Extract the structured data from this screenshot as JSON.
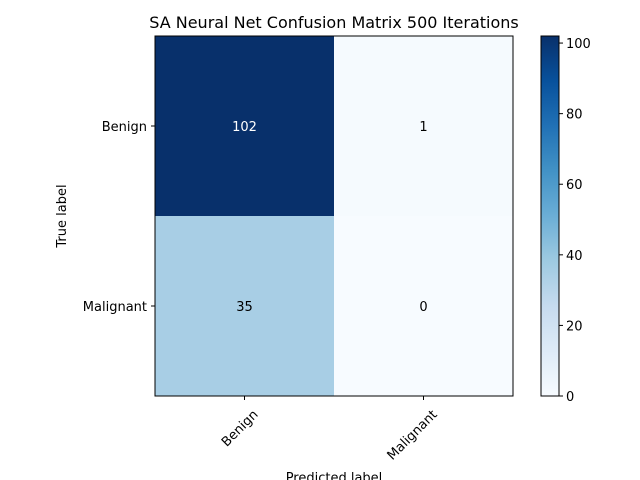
{
  "chart_data": {
    "type": "heatmap",
    "title": "SA Neural Net Confusion Matrix 500 Iterations",
    "xlabel": "Predicted label",
    "ylabel": "True label",
    "x_categories": [
      "Benign",
      "Malignant"
    ],
    "y_categories": [
      "Benign",
      "Malignant"
    ],
    "values": [
      [
        102,
        1
      ],
      [
        35,
        0
      ]
    ],
    "colorbar": {
      "min": 0,
      "max": 102,
      "ticks": [
        0,
        20,
        40,
        60,
        80,
        100
      ],
      "colormap": "Blues"
    },
    "colors": {
      "low": "#f7fbff",
      "high": "#08306b",
      "text_on_dark": "#ffffff",
      "text_on_light": "#000000"
    }
  }
}
